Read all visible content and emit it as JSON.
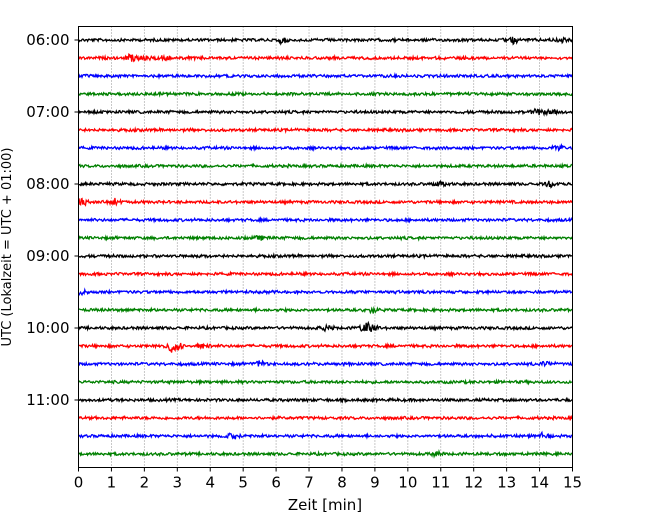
{
  "chart_data": {
    "type": "line",
    "subtype": "helicorder",
    "xlabel": "Zeit  [min]",
    "ylabel": "UTC (Lokalzeit = UTC + 01:00)",
    "xlim": [
      0,
      15
    ],
    "xticks": [
      "0",
      "1",
      "2",
      "3",
      "4",
      "5",
      "6",
      "7",
      "8",
      "9",
      "10",
      "11",
      "12",
      "13",
      "14",
      "15"
    ],
    "yticks": [
      {
        "trace": 0,
        "label": "06:00"
      },
      {
        "trace": 4,
        "label": "07:00"
      },
      {
        "trace": 8,
        "label": "08:00"
      },
      {
        "trace": 12,
        "label": "09:00"
      },
      {
        "trace": 16,
        "label": "10:00"
      },
      {
        "trace": 20,
        "label": "11:00"
      }
    ],
    "trace_count": 24,
    "minutes_per_trace": 15,
    "trace_colors": [
      "#000000",
      "#ff0000",
      "#0000ff",
      "#008000"
    ],
    "grid": "vertical dotted",
    "events": [
      {
        "trace": 0,
        "minute": 6.2,
        "amplitude": 3
      },
      {
        "trace": 0,
        "minute": 13.2,
        "amplitude": 3
      },
      {
        "trace": 0,
        "minute": 14.7,
        "amplitude": 2.5
      },
      {
        "trace": 1,
        "minute": 1.6,
        "amplitude": 4
      },
      {
        "trace": 1,
        "minute": 2.1,
        "amplitude": 2.5
      },
      {
        "trace": 1,
        "minute": 2.6,
        "amplitude": 2
      },
      {
        "trace": 4,
        "minute": 13.9,
        "amplitude": 3
      },
      {
        "trace": 4,
        "minute": 14.3,
        "amplitude": 3
      },
      {
        "trace": 6,
        "minute": 14.6,
        "amplitude": 3
      },
      {
        "trace": 8,
        "minute": 11,
        "amplitude": 2
      },
      {
        "trace": 8,
        "minute": 14.3,
        "amplitude": 2.5
      },
      {
        "trace": 9,
        "minute": 0.1,
        "amplitude": 3
      },
      {
        "trace": 9,
        "minute": 1.1,
        "amplitude": 3
      },
      {
        "trace": 11,
        "minute": 5.5,
        "amplitude": 1.5
      },
      {
        "trace": 14,
        "minute": 0.1,
        "amplitude": 2.5
      },
      {
        "trace": 15,
        "minute": 8.9,
        "amplitude": 2.5
      },
      {
        "trace": 16,
        "minute": 7.5,
        "amplitude": 2.5
      },
      {
        "trace": 16,
        "minute": 8.8,
        "amplitude": 8
      },
      {
        "trace": 17,
        "minute": 2.9,
        "amplitude": 10
      },
      {
        "trace": 17,
        "minute": 3.8,
        "amplitude": 2
      },
      {
        "trace": 18,
        "minute": 5.5,
        "amplitude": 3
      },
      {
        "trace": 18,
        "minute": 14.2,
        "amplitude": 3
      },
      {
        "trace": 22,
        "minute": 4.7,
        "amplitude": 3
      },
      {
        "trace": 22,
        "minute": 14.1,
        "amplitude": 2
      },
      {
        "trace": 23,
        "minute": 10.9,
        "amplitude": 2
      }
    ]
  }
}
